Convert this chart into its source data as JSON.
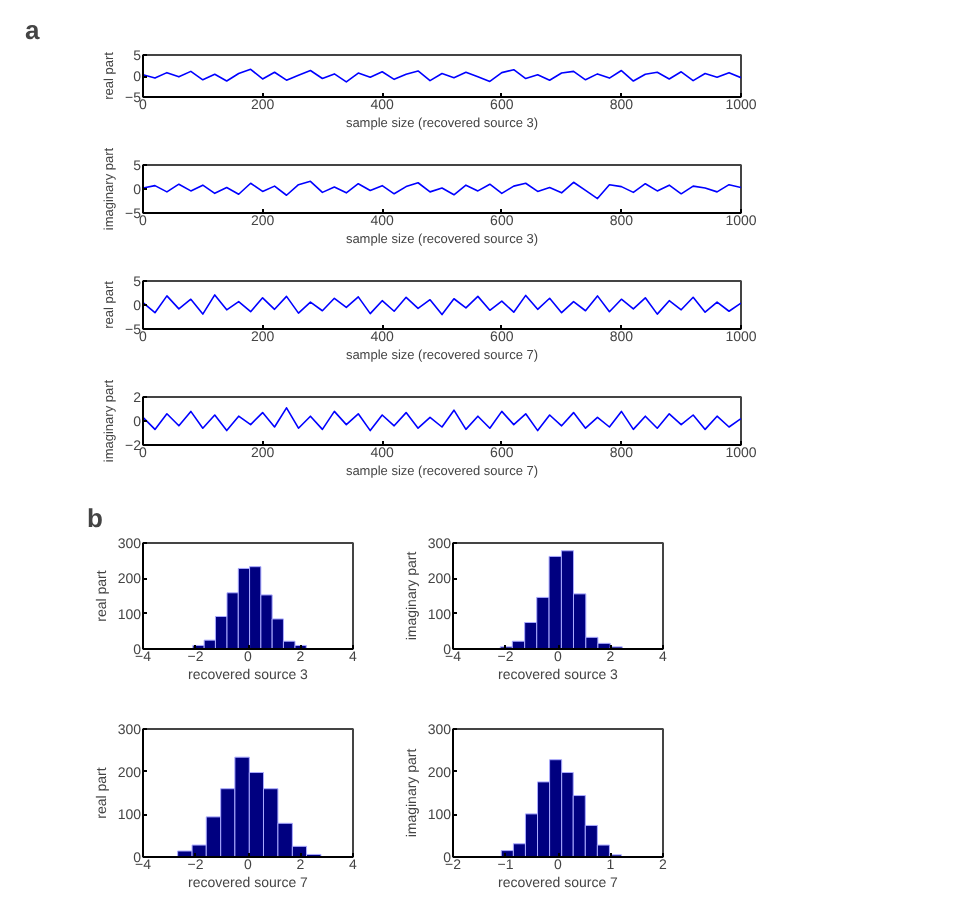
{
  "chart_data": [
    {
      "type": "line",
      "title": "a",
      "xlabel": "sample size (recovered source 3)",
      "ylabel": "real part",
      "color": "#0000ff",
      "xlim": [
        0,
        1000
      ],
      "xticks": [
        0,
        200,
        400,
        600,
        800,
        1000
      ],
      "ylim": [
        -5,
        5
      ],
      "yticks": [
        -5,
        0,
        5
      ],
      "x": [
        0,
        20,
        40,
        60,
        80,
        100,
        120,
        140,
        160,
        180,
        200,
        220,
        240,
        260,
        280,
        300,
        320,
        340,
        360,
        380,
        400,
        420,
        440,
        460,
        480,
        500,
        520,
        540,
        560,
        580,
        600,
        620,
        640,
        660,
        680,
        700,
        720,
        740,
        760,
        780,
        800,
        820,
        840,
        860,
        880,
        900,
        920,
        940,
        960,
        980,
        1000
      ],
      "values": [
        0.3,
        -0.5,
        0.8,
        -0.2,
        1.1,
        -0.9,
        0.4,
        -1.2,
        0.6,
        1.6,
        -0.7,
        0.9,
        -1.0,
        0.2,
        1.3,
        -0.6,
        0.5,
        -1.4,
        0.7,
        -0.3,
        1.0,
        -0.8,
        0.4,
        1.2,
        -1.1,
        0.6,
        -0.4,
        0.9,
        -0.2,
        -1.3,
        0.8,
        1.5,
        -0.6,
        0.3,
        -1.0,
        0.7,
        1.1,
        -0.9,
        0.5,
        -0.5,
        1.3,
        -1.2,
        0.4,
        0.9,
        -0.7,
        1.0,
        -1.1,
        0.6,
        -0.3,
        0.8,
        -0.4
      ]
    },
    {
      "type": "line",
      "xlabel": "sample size (recovered source 3)",
      "ylabel": "imaginary part",
      "color": "#0000ff",
      "xlim": [
        0,
        1000
      ],
      "xticks": [
        0,
        200,
        400,
        600,
        800,
        1000
      ],
      "ylim": [
        -5,
        5
      ],
      "yticks": [
        -5,
        0,
        5
      ],
      "x": [
        0,
        20,
        40,
        60,
        80,
        100,
        120,
        140,
        160,
        180,
        200,
        220,
        240,
        260,
        280,
        300,
        320,
        340,
        360,
        380,
        400,
        420,
        440,
        460,
        480,
        500,
        520,
        540,
        560,
        580,
        600,
        620,
        640,
        660,
        680,
        700,
        720,
        740,
        760,
        780,
        800,
        820,
        840,
        860,
        880,
        900,
        920,
        940,
        960,
        980,
        1000
      ],
      "values": [
        0.2,
        0.7,
        -0.6,
        1.0,
        -0.4,
        0.8,
        -0.9,
        0.3,
        -1.1,
        1.2,
        -0.5,
        0.6,
        -1.3,
        0.9,
        1.6,
        -0.7,
        0.4,
        -0.8,
        1.1,
        -0.3,
        0.7,
        -1.0,
        0.5,
        1.3,
        -0.6,
        0.2,
        -1.2,
        0.8,
        -0.4,
        1.0,
        -0.9,
        0.6,
        1.2,
        -0.5,
        0.3,
        -0.8,
        1.4,
        -0.3,
        -2.0,
        0.9,
        0.5,
        -0.7,
        1.1,
        -0.4,
        0.8,
        -1.0,
        0.6,
        0.2,
        -0.6,
        0.9,
        0.3
      ]
    },
    {
      "type": "line",
      "xlabel": "sample size (recovered source 7)",
      "ylabel": "real part",
      "color": "#0000ff",
      "xlim": [
        0,
        1000
      ],
      "xticks": [
        0,
        200,
        400,
        600,
        800,
        1000
      ],
      "ylim": [
        -5,
        5
      ],
      "yticks": [
        -5,
        0,
        5
      ],
      "x": [
        0,
        20,
        40,
        60,
        80,
        100,
        120,
        140,
        160,
        180,
        200,
        220,
        240,
        260,
        280,
        300,
        320,
        340,
        360,
        380,
        400,
        420,
        440,
        460,
        480,
        500,
        520,
        540,
        560,
        580,
        600,
        620,
        640,
        660,
        680,
        700,
        720,
        740,
        760,
        780,
        800,
        820,
        840,
        860,
        880,
        900,
        920,
        940,
        960,
        980,
        1000
      ],
      "values": [
        0.5,
        -1.6,
        1.9,
        -0.8,
        1.2,
        -1.9,
        2.1,
        -1.0,
        0.7,
        -1.4,
        1.5,
        -0.9,
        1.8,
        -1.7,
        0.6,
        -1.2,
        1.4,
        -0.5,
        1.7,
        -1.8,
        0.9,
        -1.3,
        1.6,
        -0.7,
        1.1,
        -2.0,
        1.3,
        -0.6,
        1.8,
        -1.1,
        0.8,
        -1.5,
        2.0,
        -0.9,
        1.4,
        -1.6,
        0.7,
        -1.2,
        1.9,
        -1.4,
        1.2,
        -0.8,
        1.5,
        -1.9,
        0.9,
        -1.0,
        1.6,
        -1.5,
        0.6,
        -1.3,
        0.4
      ]
    },
    {
      "type": "line",
      "xlabel": "sample size (recovered source 7)",
      "ylabel": "imaginary part",
      "color": "#0000ff",
      "xlim": [
        0,
        1000
      ],
      "xticks": [
        0,
        200,
        400,
        600,
        800,
        1000
      ],
      "ylim": [
        -2,
        2
      ],
      "yticks": [
        -2,
        0,
        2
      ],
      "x": [
        0,
        20,
        40,
        60,
        80,
        100,
        120,
        140,
        160,
        180,
        200,
        220,
        240,
        260,
        280,
        300,
        320,
        340,
        360,
        380,
        400,
        420,
        440,
        460,
        480,
        500,
        520,
        540,
        560,
        580,
        600,
        620,
        640,
        660,
        680,
        700,
        720,
        740,
        760,
        780,
        800,
        820,
        840,
        860,
        880,
        900,
        920,
        940,
        960,
        980,
        1000
      ],
      "values": [
        0.3,
        -0.7,
        0.6,
        -0.4,
        0.8,
        -0.6,
        0.5,
        -0.8,
        0.4,
        -0.3,
        0.7,
        -0.5,
        1.1,
        -0.6,
        0.4,
        -0.7,
        0.8,
        -0.3,
        0.6,
        -0.8,
        0.5,
        -0.4,
        0.7,
        -0.6,
        0.3,
        -0.5,
        0.9,
        -0.7,
        0.4,
        -0.6,
        0.8,
        -0.3,
        0.6,
        -0.8,
        0.5,
        -0.4,
        0.7,
        -0.6,
        0.3,
        -0.5,
        0.8,
        -0.7,
        0.4,
        -0.6,
        0.6,
        -0.3,
        0.5,
        -0.7,
        0.4,
        -0.5,
        0.2
      ]
    },
    {
      "type": "histogram",
      "title": "b",
      "xlabel": "recovered source 3",
      "ylabel": "real part",
      "color": "#000080",
      "xlim": [
        -4,
        4
      ],
      "xticks": [
        -4,
        -2,
        0,
        2,
        4
      ],
      "ylim": [
        0,
        300
      ],
      "yticks": [
        0,
        100,
        200,
        300
      ],
      "bins": [
        -2.1,
        -1.67,
        -1.24,
        -0.8,
        -0.37,
        0.06,
        0.49,
        0.92,
        1.35,
        1.79,
        2.22
      ],
      "values": [
        10,
        25,
        92,
        159,
        228,
        233,
        153,
        85,
        22,
        10
      ]
    },
    {
      "type": "histogram",
      "xlabel": "recovered source 3",
      "ylabel": "imaginary part",
      "color": "#000080",
      "xlim": [
        -4,
        4
      ],
      "xticks": [
        -4,
        -2,
        0,
        2,
        4
      ],
      "ylim": [
        0,
        300
      ],
      "yticks": [
        0,
        100,
        200,
        300
      ],
      "bins": [
        -2.2,
        -1.74,
        -1.27,
        -0.81,
        -0.34,
        0.13,
        0.59,
        1.06,
        1.52,
        1.99,
        2.45
      ],
      "values": [
        6,
        22,
        75,
        146,
        262,
        278,
        156,
        33,
        16,
        6
      ]
    },
    {
      "type": "histogram",
      "xlabel": "recovered source 7",
      "ylabel": "real part",
      "color": "#000080",
      "xlim": [
        -4,
        4
      ],
      "xticks": [
        -4,
        -2,
        0,
        2,
        4
      ],
      "ylim": [
        0,
        300
      ],
      "yticks": [
        0,
        100,
        200,
        300
      ],
      "bins": [
        -2.68,
        -2.13,
        -1.59,
        -1.04,
        -0.5,
        0.05,
        0.59,
        1.14,
        1.69,
        2.23,
        2.78
      ],
      "values": [
        14,
        28,
        94,
        160,
        234,
        198,
        160,
        79,
        25,
        6
      ]
    },
    {
      "type": "histogram",
      "xlabel": "recovered source 7",
      "ylabel": "imaginary part",
      "color": "#000080",
      "xlim": [
        -2,
        2
      ],
      "xticks": [
        -2,
        -1,
        0,
        1,
        2
      ],
      "ylim": [
        0,
        300
      ],
      "yticks": [
        0,
        100,
        200,
        300
      ],
      "bins": [
        -1.08,
        -0.85,
        -0.62,
        -0.39,
        -0.16,
        0.07,
        0.29,
        0.52,
        0.75,
        0.98,
        1.21
      ],
      "values": [
        15,
        31,
        101,
        176,
        228,
        198,
        144,
        74,
        28,
        5
      ]
    }
  ]
}
